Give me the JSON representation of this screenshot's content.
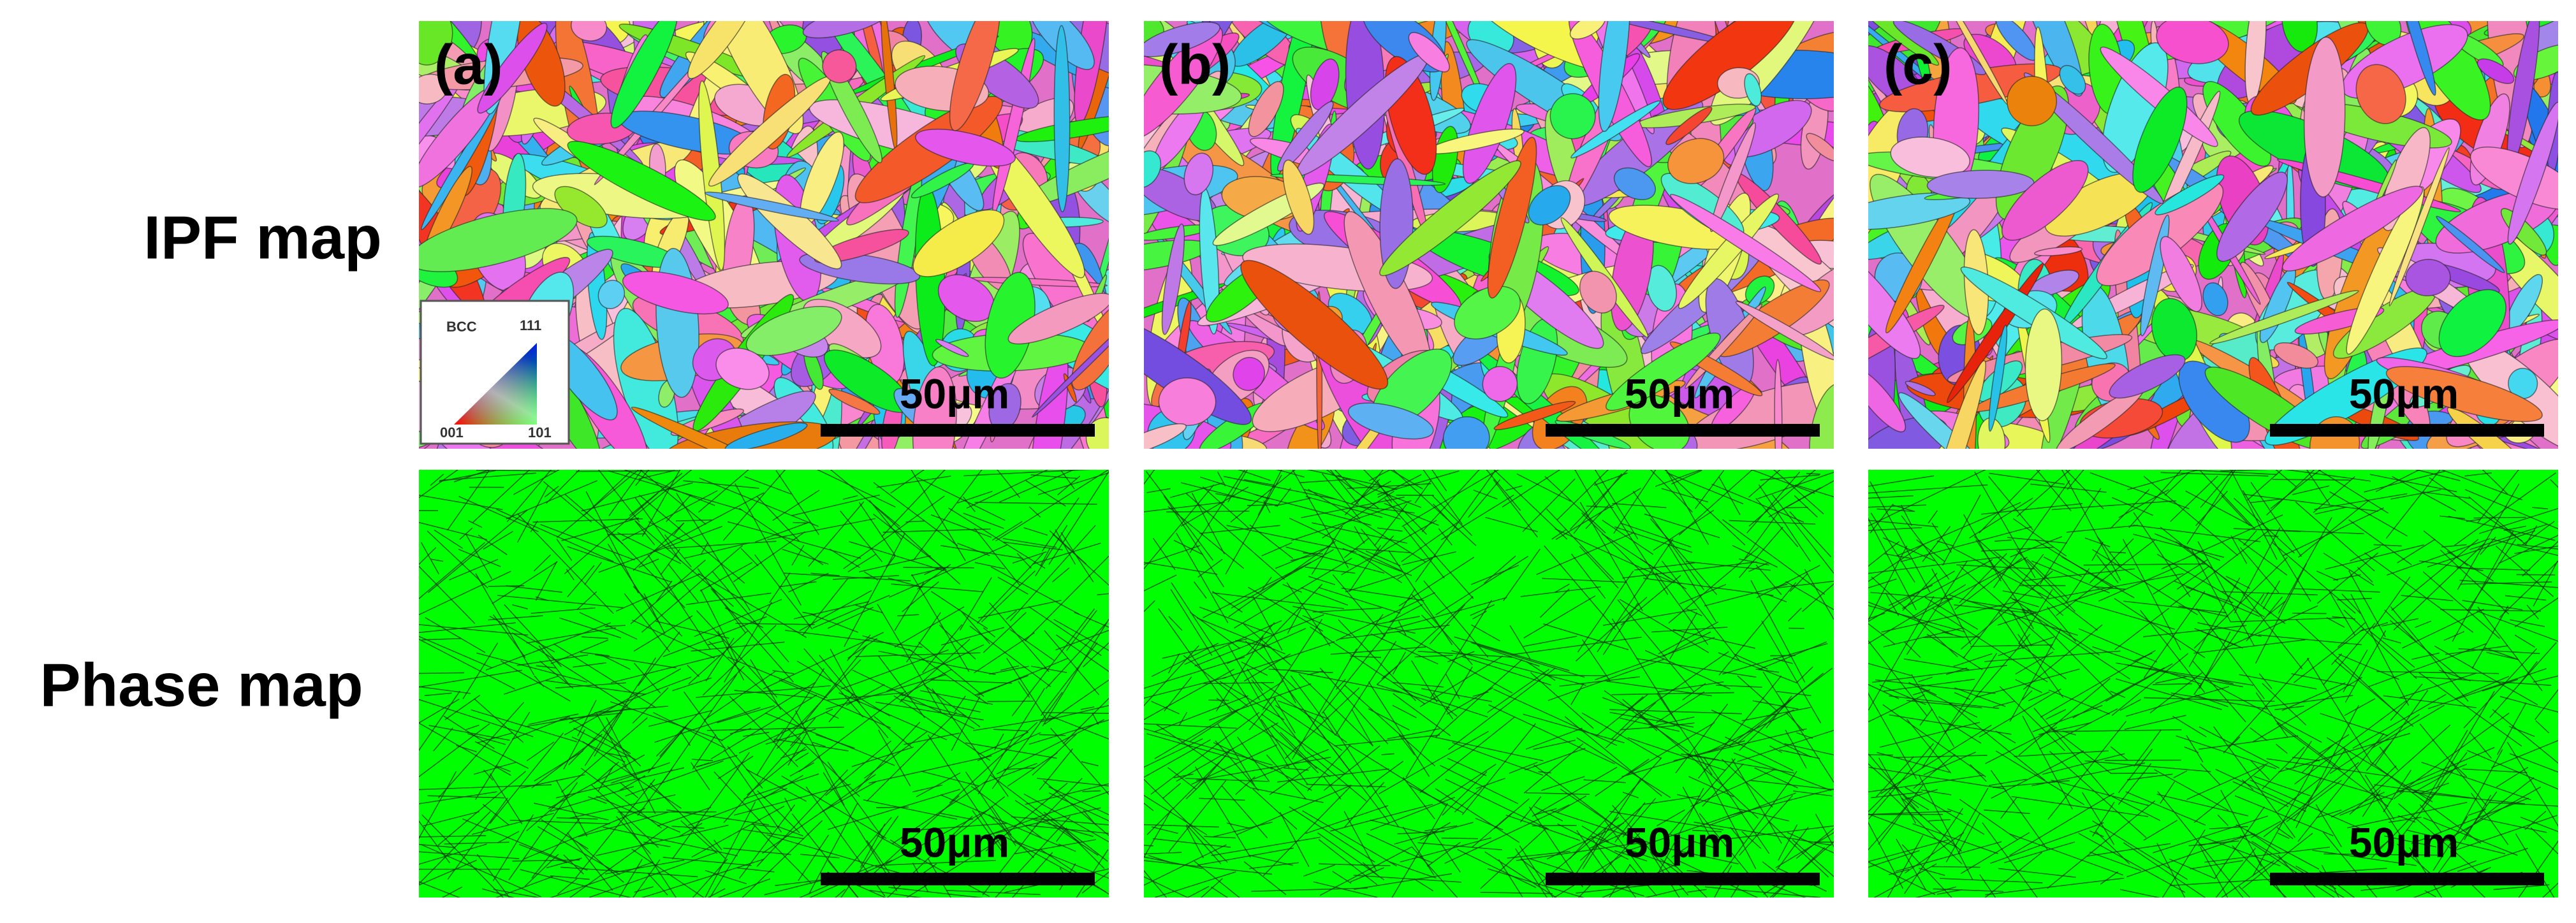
{
  "row_labels": [
    "IPF map",
    "Phase map"
  ],
  "panels": [
    {
      "label": "(a)"
    },
    {
      "label": "(b)"
    },
    {
      "label": "(c)"
    }
  ],
  "scale_bar": "50μm",
  "legend": {
    "title": "BCC",
    "top": "111",
    "bottom_left": "001",
    "bottom_right": "101"
  }
}
